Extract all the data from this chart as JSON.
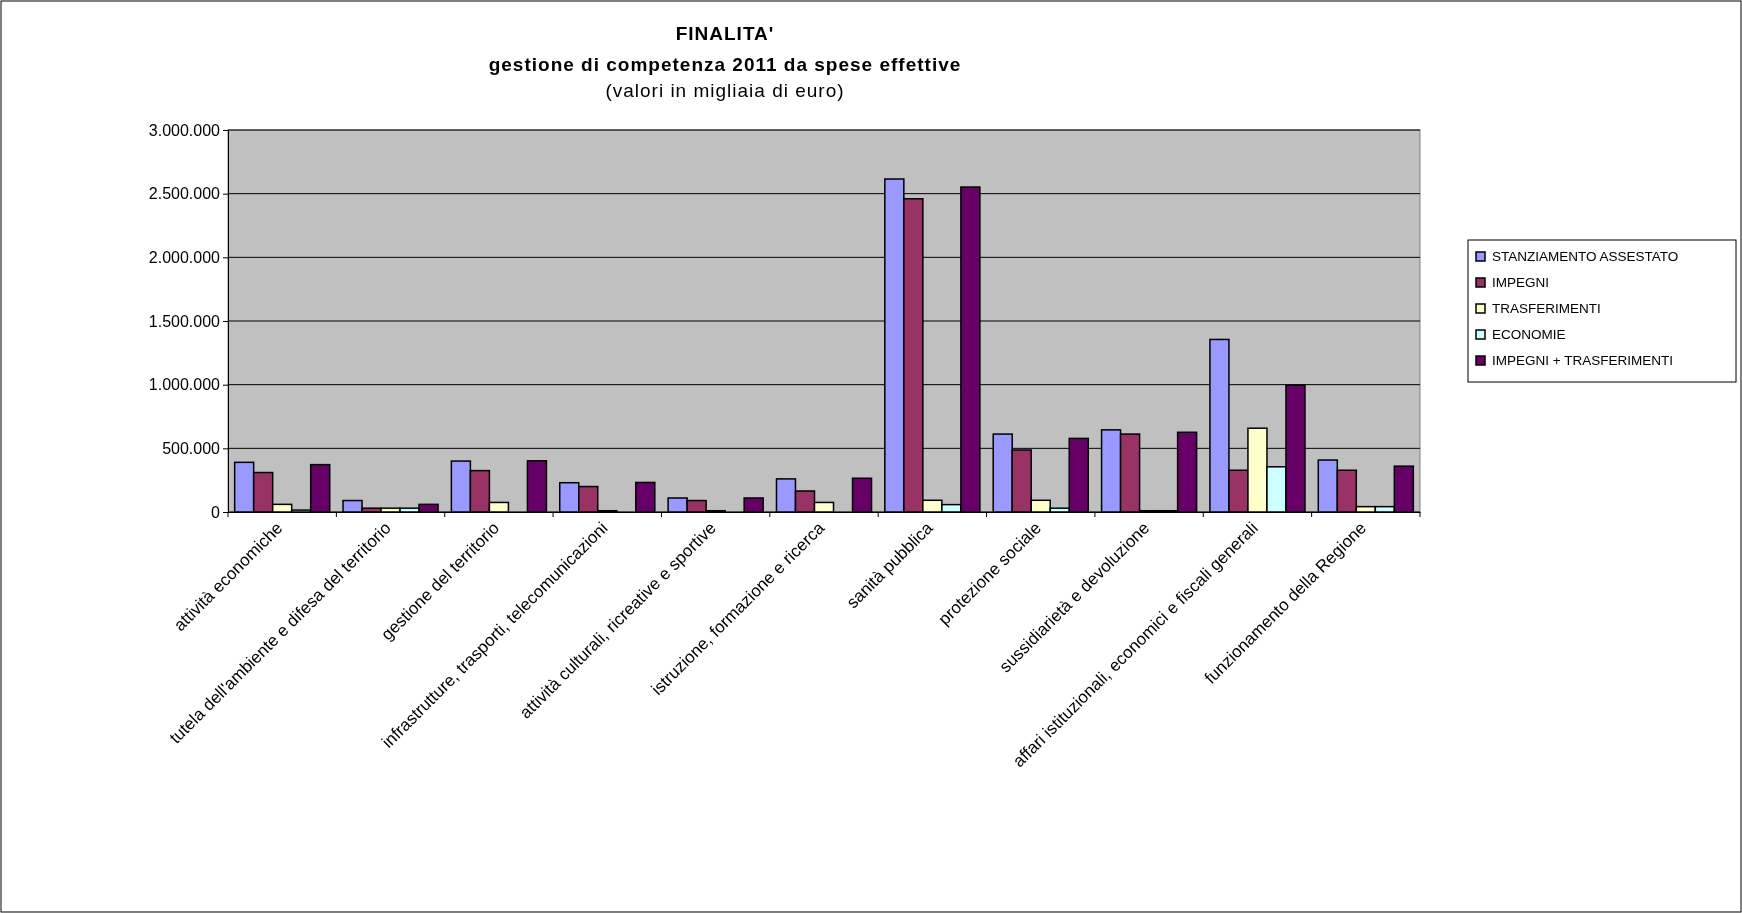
{
  "chart_data": {
    "type": "bar",
    "title": "FINALITA'",
    "subtitle": "gestione di competenza 2011 da spese effettive\n(valori in migliaia di euro)",
    "categories": [
      "attività economiche",
      "tutela dell'ambiente e difesa del territorio",
      "gestione del territorio",
      "infrastrutture, trasporti, telecomunicazioni",
      "attività culturali, ricreative e sportive",
      "istruzione, formazione e ricerca",
      "sanità pubblica",
      "protezione sociale",
      "sussidiarietà e devoluzione",
      "affari istituzionali, economici e fiscali generali",
      "funzionamento della Regione"
    ],
    "series": [
      {
        "name": "STANZIAMENTO ASSESTATO",
        "color": "#9999ff",
        "values": [
          390000,
          90000,
          400000,
          230000,
          110000,
          260000,
          2615000,
          612000,
          645000,
          1355000,
          408000
        ]
      },
      {
        "name": "IMPEGNI",
        "color": "#993366",
        "values": [
          310000,
          30000,
          325000,
          200000,
          90000,
          165000,
          2460000,
          487000,
          612000,
          328000,
          328000
        ]
      },
      {
        "name": "TRASFERIMENTI",
        "color": "#ffffcc",
        "values": [
          60000,
          30000,
          75000,
          10000,
          10000,
          75000,
          92000,
          92000,
          10000,
          658000,
          42000
        ]
      },
      {
        "name": "ECONOMIE",
        "color": "#ccffff",
        "values": [
          15000,
          30000,
          0,
          null,
          null,
          0,
          58000,
          30000,
          10000,
          355000,
          42000
        ]
      },
      {
        "name": "IMPEGNI + TRASFERIMENTI",
        "color": "#660066",
        "values": [
          372000,
          60000,
          402000,
          232000,
          110000,
          265000,
          2552000,
          578000,
          626000,
          995000,
          360000
        ]
      }
    ],
    "ylim": [
      0,
      3000000
    ],
    "yticks": [
      {
        "value": 0,
        "label": "0"
      },
      {
        "value": 500000,
        "label": "500.000"
      },
      {
        "value": 1000000,
        "label": "1.000.000"
      },
      {
        "value": 1500000,
        "label": "1.500.000"
      },
      {
        "value": 2000000,
        "label": "2.000.000"
      },
      {
        "value": 2500000,
        "label": "2.500.000"
      },
      {
        "value": 3000000,
        "label": "3.000.000"
      }
    ],
    "grid": "y",
    "legend": "right"
  }
}
